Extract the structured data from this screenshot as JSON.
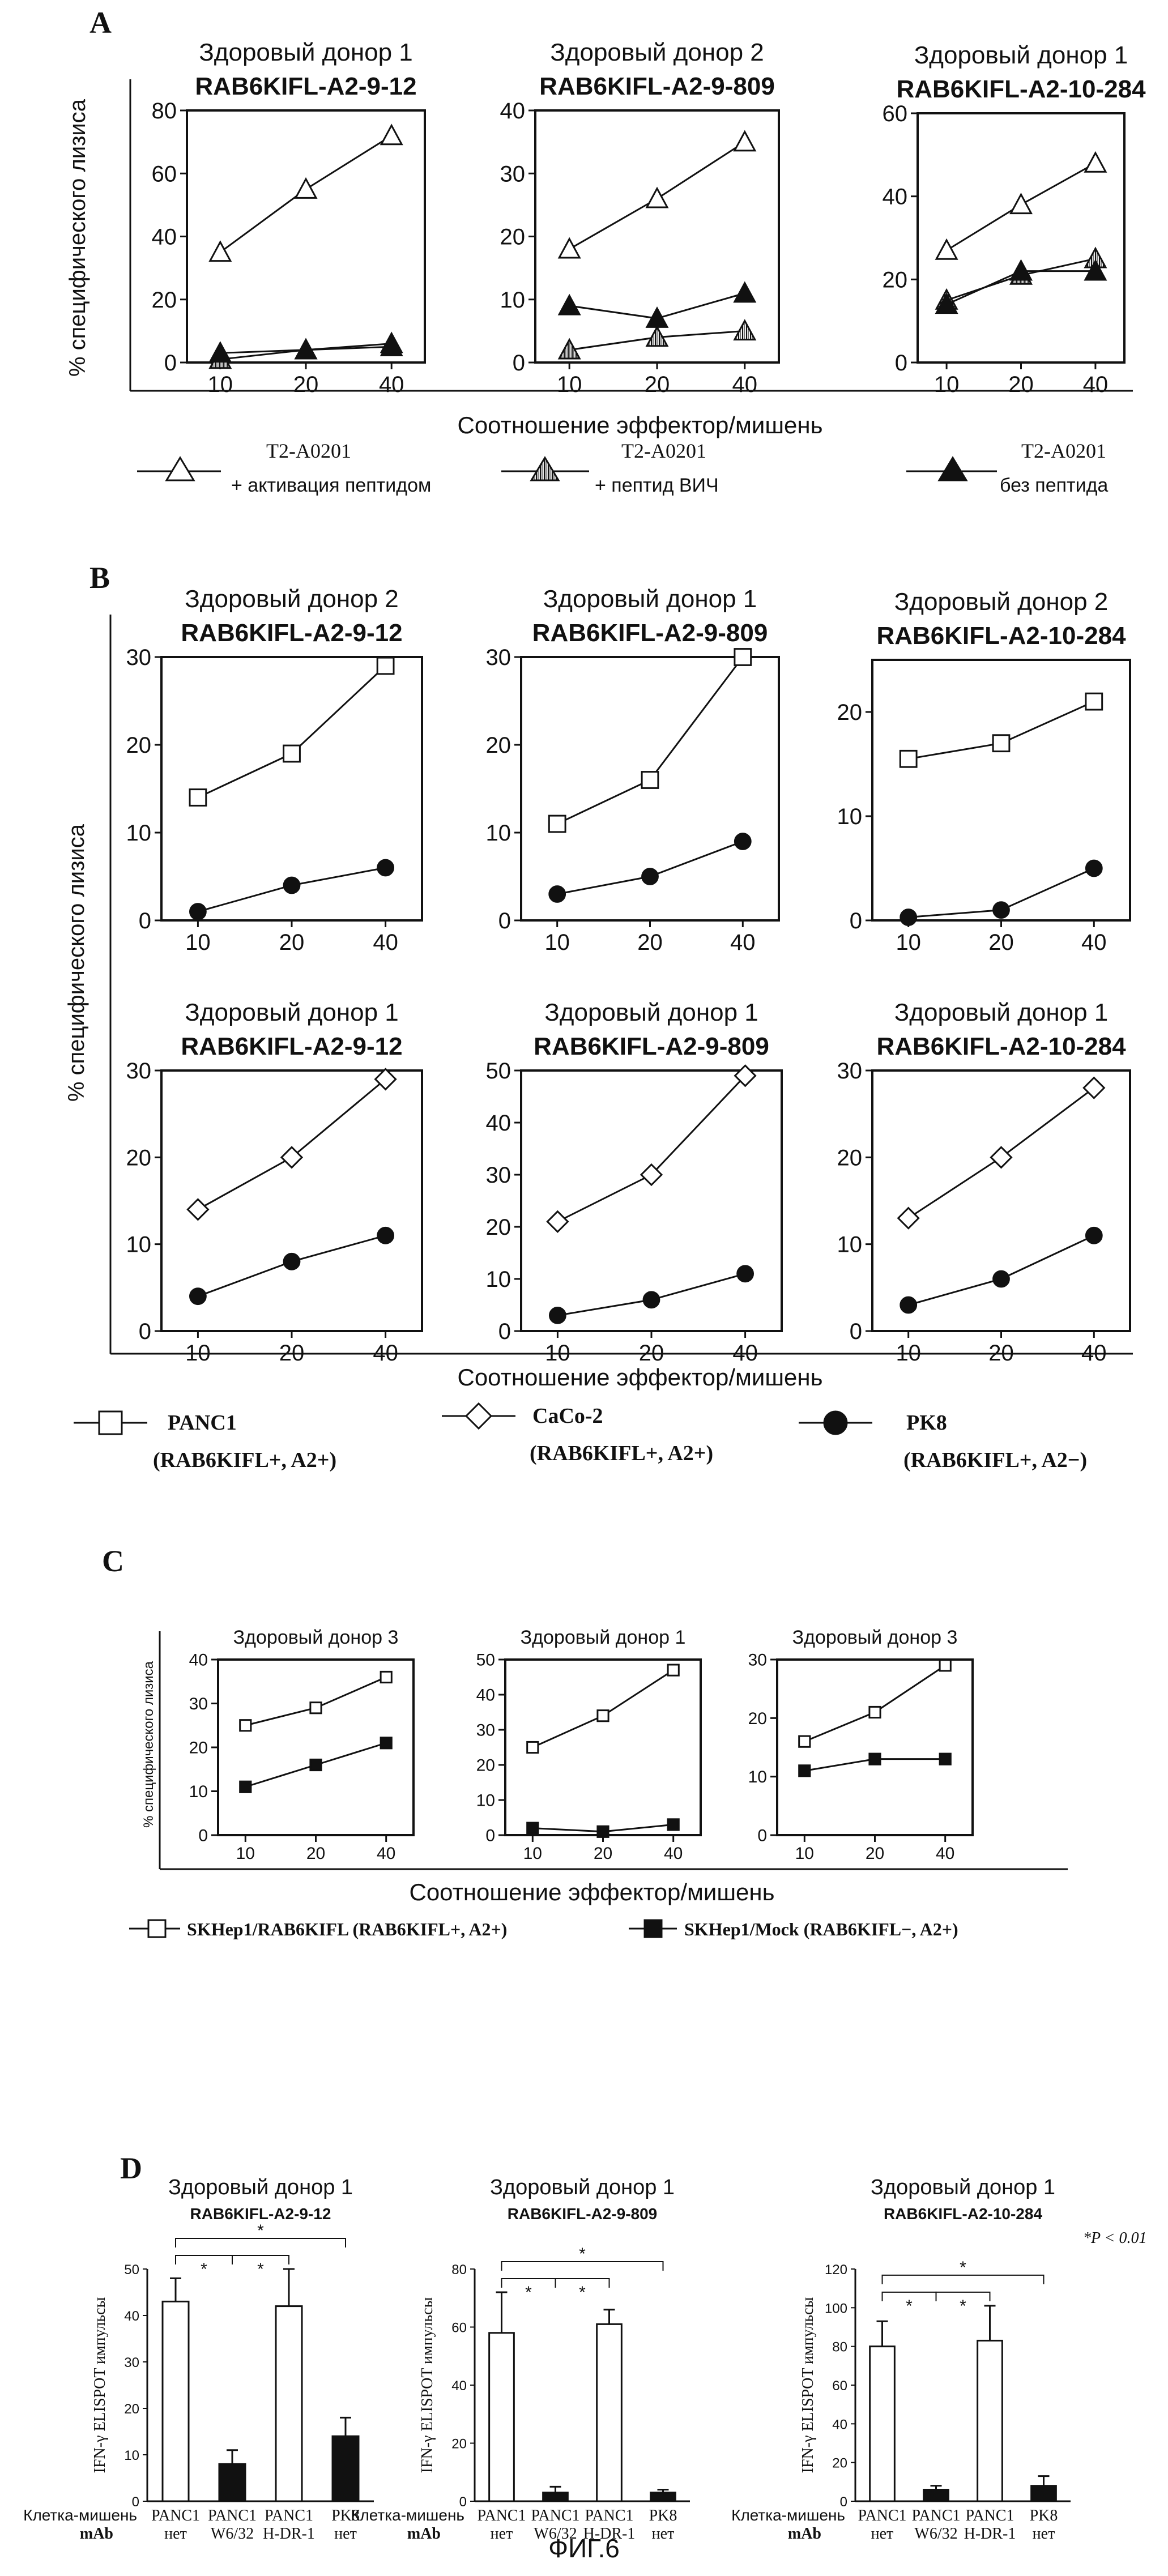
{
  "figure_caption": "ФИГ.6",
  "panels": {
    "A": {
      "letter": "A",
      "ylabel": "% специфического лизиса",
      "xlabel": "Соотношение эффектор/мишень",
      "legend": [
        {
          "marker": "triangle-open",
          "line1": "T2-A0201",
          "line2": "+ активация пептидом"
        },
        {
          "marker": "triangle-hatched",
          "line1": "T2-A0201",
          "line2": "+ пептид ВИЧ"
        },
        {
          "marker": "triangle-filled",
          "line1": "T2-A0201",
          "line2": "без пептида"
        }
      ]
    },
    "B": {
      "letter": "B",
      "ylabel": "% специфического лизиса",
      "xlabel": "Соотношение эффектор/мишень",
      "legend": [
        {
          "marker": "square-open",
          "line1": "PANC1",
          "line2": "(RAB6KIFL+, A2+)"
        },
        {
          "marker": "diamond-open",
          "line1": "CaCo-2",
          "line2": "(RAB6KIFL+, A2+)"
        },
        {
          "marker": "circle-filled",
          "line1": "PK8",
          "line2": "(RAB6KIFL+, A2−)"
        }
      ]
    },
    "C": {
      "letter": "C",
      "ylabel": "% специфического лизиса",
      "xlabel": "Соотношение эффектор/мишень",
      "legend": [
        {
          "marker": "square-open",
          "text": "SKHep1/RAB6KIFL (RAB6KIFL+, A2+)"
        },
        {
          "marker": "square-filled",
          "text": "SKHep1/Mock (RAB6KIFL−, A2+)"
        }
      ]
    },
    "D": {
      "letter": "D",
      "ylabel": "IFN-γ ELISPOT импульсы",
      "row_label_target": "Клетка-мишень",
      "row_label_mab": "mAb",
      "pvalue_note": "*P < 0.01"
    }
  },
  "chart_data": [
    {
      "id": "A1",
      "panel": "A",
      "type": "line",
      "donor": "Здоровый донор 1",
      "peptide": "RAB6KIFL-A2-9-12",
      "x": [
        10,
        20,
        40
      ],
      "xticks": [
        "10",
        "20",
        "40"
      ],
      "ylim": [
        0,
        80
      ],
      "yticks": [
        0,
        20,
        40,
        60,
        80
      ],
      "series": [
        {
          "marker": "triangle-open",
          "values": [
            35,
            55,
            72
          ]
        },
        {
          "marker": "triangle-hatched",
          "values": [
            1,
            4,
            6
          ]
        },
        {
          "marker": "triangle-filled",
          "values": [
            3,
            4,
            5
          ]
        }
      ]
    },
    {
      "id": "A2",
      "panel": "A",
      "type": "line",
      "donor": "Здоровый донор 2",
      "peptide": "RAB6KIFL-A2-9-809",
      "x": [
        10,
        20,
        40
      ],
      "xticks": [
        "10",
        "20",
        "40"
      ],
      "ylim": [
        0,
        40
      ],
      "yticks": [
        0,
        10,
        20,
        30,
        40
      ],
      "series": [
        {
          "marker": "triangle-open",
          "values": [
            18,
            26,
            35
          ]
        },
        {
          "marker": "triangle-hatched",
          "values": [
            2,
            4,
            5
          ]
        },
        {
          "marker": "triangle-filled",
          "values": [
            9,
            7,
            11
          ]
        }
      ]
    },
    {
      "id": "A3",
      "panel": "A",
      "type": "line",
      "donor": "Здоровый донор 1",
      "peptide": "RAB6KIFL-A2-10-284",
      "x": [
        10,
        20,
        40
      ],
      "xticks": [
        "10",
        "20",
        "40"
      ],
      "ylim": [
        0,
        60
      ],
      "yticks": [
        0,
        20,
        40,
        60
      ],
      "series": [
        {
          "marker": "triangle-open",
          "values": [
            27,
            38,
            48
          ]
        },
        {
          "marker": "triangle-hatched",
          "values": [
            15,
            21,
            25
          ]
        },
        {
          "marker": "triangle-filled",
          "values": [
            14,
            22,
            22
          ]
        }
      ]
    },
    {
      "id": "B1",
      "panel": "B",
      "type": "line",
      "donor": "Здоровый донор 2",
      "peptide": "RAB6KIFL-A2-9-12",
      "x": [
        10,
        20,
        40
      ],
      "xticks": [
        "10",
        "20",
        "40"
      ],
      "ylim": [
        0,
        30
      ],
      "yticks": [
        0,
        10,
        20,
        30
      ],
      "series": [
        {
          "marker": "square-open",
          "values": [
            14,
            19,
            29
          ]
        },
        {
          "marker": "circle-filled",
          "values": [
            1,
            4,
            6
          ]
        }
      ]
    },
    {
      "id": "B2",
      "panel": "B",
      "type": "line",
      "donor": "Здоровый донор 1",
      "peptide": "RAB6KIFL-A2-9-809",
      "x": [
        10,
        20,
        40
      ],
      "xticks": [
        "10",
        "20",
        "40"
      ],
      "ylim": [
        0,
        30
      ],
      "yticks": [
        0,
        10,
        20,
        30
      ],
      "series": [
        {
          "marker": "square-open",
          "values": [
            11,
            16,
            30
          ]
        },
        {
          "marker": "circle-filled",
          "values": [
            3,
            5,
            9
          ]
        }
      ]
    },
    {
      "id": "B3",
      "panel": "B",
      "type": "line",
      "donor": "Здоровый донор 2",
      "peptide": "RAB6KIFL-A2-10-284",
      "x": [
        10,
        20,
        40
      ],
      "xticks": [
        "10",
        "20",
        "40"
      ],
      "ylim": [
        0,
        25
      ],
      "yticks": [
        0,
        10,
        20
      ],
      "series": [
        {
          "marker": "square-open",
          "values": [
            15.5,
            17,
            21
          ]
        },
        {
          "marker": "circle-filled",
          "values": [
            0.3,
            1,
            5
          ]
        }
      ]
    },
    {
      "id": "B4",
      "panel": "B",
      "type": "line",
      "donor": "Здоровый донор 1",
      "peptide": "RAB6KIFL-A2-9-12",
      "x": [
        10,
        20,
        40
      ],
      "xticks": [
        "10",
        "20",
        "40"
      ],
      "ylim": [
        0,
        30
      ],
      "yticks": [
        0,
        10,
        20,
        30
      ],
      "series": [
        {
          "marker": "diamond-open",
          "values": [
            14,
            20,
            29
          ]
        },
        {
          "marker": "circle-filled",
          "values": [
            4,
            8,
            11
          ]
        }
      ]
    },
    {
      "id": "B5",
      "panel": "B",
      "type": "line",
      "donor": "Здоровый донор 1",
      "peptide": "RAB6KIFL-A2-9-809",
      "x": [
        10,
        20,
        40
      ],
      "xticks": [
        "10",
        "20",
        "40"
      ],
      "ylim": [
        0,
        50
      ],
      "yticks": [
        0,
        10,
        20,
        30,
        40,
        50
      ],
      "series": [
        {
          "marker": "diamond-open",
          "values": [
            21,
            30,
            49
          ]
        },
        {
          "marker": "circle-filled",
          "values": [
            3,
            6,
            11
          ]
        }
      ]
    },
    {
      "id": "B6",
      "panel": "B",
      "type": "line",
      "donor": "Здоровый донор 1",
      "peptide": "RAB6KIFL-A2-10-284",
      "x": [
        10,
        20,
        40
      ],
      "xticks": [
        "10",
        "20",
        "40"
      ],
      "ylim": [
        0,
        30
      ],
      "yticks": [
        0,
        10,
        20,
        30
      ],
      "series": [
        {
          "marker": "diamond-open",
          "values": [
            13,
            20,
            28
          ]
        },
        {
          "marker": "circle-filled",
          "values": [
            3,
            6,
            11
          ]
        }
      ]
    },
    {
      "id": "C1",
      "panel": "C",
      "type": "line",
      "donor": "Здоровый донор 3",
      "peptide": "",
      "x": [
        10,
        20,
        40
      ],
      "xticks": [
        "10",
        "20",
        "40"
      ],
      "ylim": [
        0,
        40
      ],
      "yticks": [
        0,
        10,
        20,
        30,
        40
      ],
      "series": [
        {
          "marker": "square-open",
          "values": [
            25,
            29,
            36
          ]
        },
        {
          "marker": "square-filled",
          "values": [
            11,
            16,
            21
          ]
        }
      ]
    },
    {
      "id": "C2",
      "panel": "C",
      "type": "line",
      "donor": "Здоровый донор 1",
      "peptide": "",
      "x": [
        10,
        20,
        40
      ],
      "xticks": [
        "10",
        "20",
        "40"
      ],
      "ylim": [
        0,
        50
      ],
      "yticks": [
        0,
        10,
        20,
        30,
        40,
        50
      ],
      "series": [
        {
          "marker": "square-open",
          "values": [
            25,
            34,
            47
          ]
        },
        {
          "marker": "square-filled",
          "values": [
            2,
            1,
            3
          ]
        }
      ]
    },
    {
      "id": "C3",
      "panel": "C",
      "type": "line",
      "donor": "Здоровый донор  3",
      "peptide": "",
      "x": [
        10,
        20,
        40
      ],
      "xticks": [
        "10",
        "20",
        "40"
      ],
      "ylim": [
        0,
        30
      ],
      "yticks": [
        0,
        10,
        20,
        30
      ],
      "series": [
        {
          "marker": "square-open",
          "values": [
            16,
            21,
            29
          ]
        },
        {
          "marker": "square-filled",
          "values": [
            11,
            13,
            13
          ]
        }
      ]
    },
    {
      "id": "D1",
      "panel": "D",
      "type": "bar",
      "donor": "Здоровый донор 1",
      "peptide": "RAB6KIFL-A2-9-12",
      "categories": [
        "PANC1",
        "PANC1",
        "PANC1",
        "PK8"
      ],
      "mab": [
        "нет",
        "W6/32",
        "H-DR-1",
        "нет"
      ],
      "values": [
        43,
        8,
        42,
        14
      ],
      "errors": [
        5,
        3,
        8,
        4
      ],
      "fills": [
        "open",
        "filled",
        "open",
        "filled"
      ],
      "ylim": [
        0,
        50
      ],
      "yticks": [
        0,
        10,
        20,
        30,
        40,
        50
      ],
      "significance": [
        {
          "from": 0,
          "to": 1,
          "label": "*",
          "level": 0
        },
        {
          "from": 1,
          "to": 2,
          "label": "*",
          "level": 0
        },
        {
          "from": 0,
          "to": 3,
          "label": "*",
          "level": 1
        }
      ]
    },
    {
      "id": "D2",
      "panel": "D",
      "type": "bar",
      "donor": "Здоровый донор 1",
      "peptide": "RAB6KIFL-A2-9-809",
      "categories": [
        "PANC1",
        "PANC1",
        "PANC1",
        "PK8"
      ],
      "mab": [
        "нет",
        "W6/32",
        "H-DR-1",
        "нет"
      ],
      "values": [
        58,
        3,
        61,
        3
      ],
      "errors": [
        14,
        2,
        5,
        1
      ],
      "fills": [
        "open",
        "filled",
        "open",
        "filled"
      ],
      "ylim": [
        0,
        80
      ],
      "yticks": [
        0,
        20,
        40,
        60,
        80
      ],
      "significance": [
        {
          "from": 0,
          "to": 1,
          "label": "*",
          "level": 0
        },
        {
          "from": 1,
          "to": 2,
          "label": "*",
          "level": 0
        },
        {
          "from": 0,
          "to": 3,
          "label": "*",
          "level": 1
        }
      ]
    },
    {
      "id": "D3",
      "panel": "D",
      "type": "bar",
      "donor": "Здоровый донор 1",
      "peptide": "RAB6KIFL-A2-10-284",
      "categories": [
        "PANC1",
        "PANC1",
        "PANC1",
        "PK8"
      ],
      "mab": [
        "нет",
        "W6/32",
        "H-DR-1",
        "нет"
      ],
      "values": [
        80,
        6,
        83,
        8
      ],
      "errors": [
        13,
        2,
        18,
        5
      ],
      "fills": [
        "open",
        "filled",
        "open",
        "filled"
      ],
      "ylim": [
        0,
        120
      ],
      "yticks": [
        0,
        20,
        40,
        60,
        80,
        100,
        120
      ],
      "significance": [
        {
          "from": 0,
          "to": 1,
          "label": "*",
          "level": 0
        },
        {
          "from": 1,
          "to": 2,
          "label": "*",
          "level": 0
        },
        {
          "from": 0,
          "to": 3,
          "label": "*",
          "level": 1
        }
      ]
    }
  ]
}
